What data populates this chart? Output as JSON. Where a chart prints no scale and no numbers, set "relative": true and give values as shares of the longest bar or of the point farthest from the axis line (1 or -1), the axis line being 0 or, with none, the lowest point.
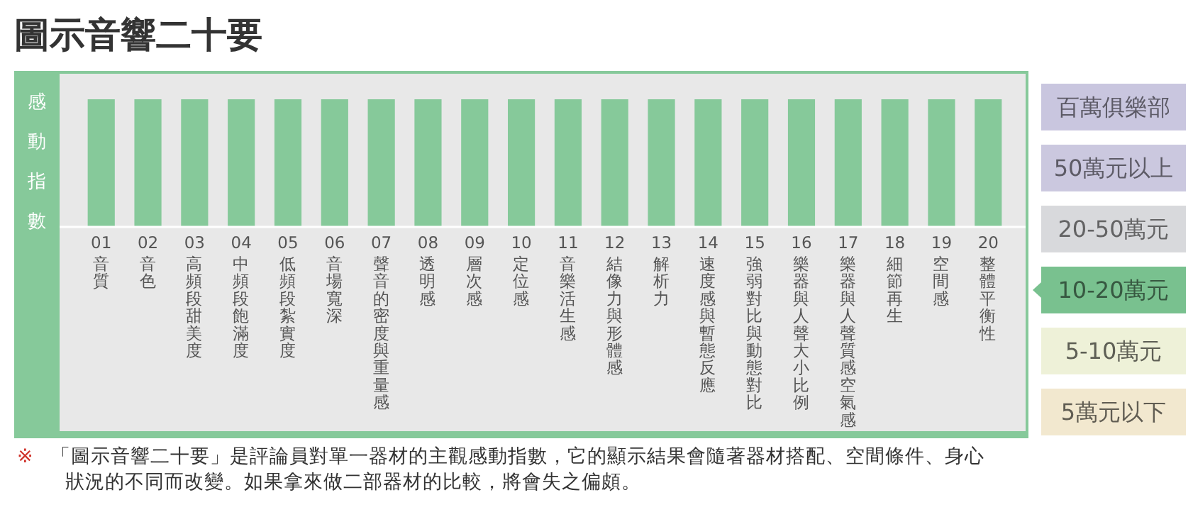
{
  "chart_data": [
    {
      "type": "bar",
      "title": "圖示音響二十要",
      "ylabel": "感動指數",
      "relative": true,
      "categories": [
        "01 音質",
        "02 音色",
        "03 高頻段甜美度",
        "04 中頻段飽滿度",
        "05 低頻段紮實度",
        "06 音場寬深",
        "07 聲音的密度與重量感",
        "08 透明感",
        "09 層次感",
        "10 定位感",
        "11 音樂活生感",
        "12 結像力與形體感",
        "13 解析力",
        "14 速度感與暫態反應",
        "15 強弱對比與動態對比",
        "16 樂器與人聲大小比例",
        "17 樂器與人聲質感空氣感",
        "18 細節再生",
        "19 空間感",
        "20 整體平衡性"
      ],
      "values": [
        1,
        1,
        1,
        1,
        1,
        1,
        1,
        1,
        1,
        1,
        1,
        1,
        1,
        1,
        1,
        1,
        1,
        1,
        1,
        1
      ],
      "color": "#86c99a",
      "annotations": [
        "※ 「圖示音響二十要」是評論員對單一器材的主觀感動指數，它的顯示結果會隨著器材搭配、空間條件、身心狀況的不同而改變。如果拿來做二部器材的比較，將會失之偏頗。"
      ]
    },
    {
      "type": "other",
      "categories": [
        "百萬俱樂部",
        "50萬元以上",
        "20-50萬元",
        "10-20萬元",
        "5-10萬元",
        "5萬元以下"
      ],
      "colors": [
        "#c9c6df",
        "#cbc8df",
        "#d8d9dc",
        "#79c18f",
        "#eef1d8",
        "#f2e8cf"
      ]
    }
  ]
}
